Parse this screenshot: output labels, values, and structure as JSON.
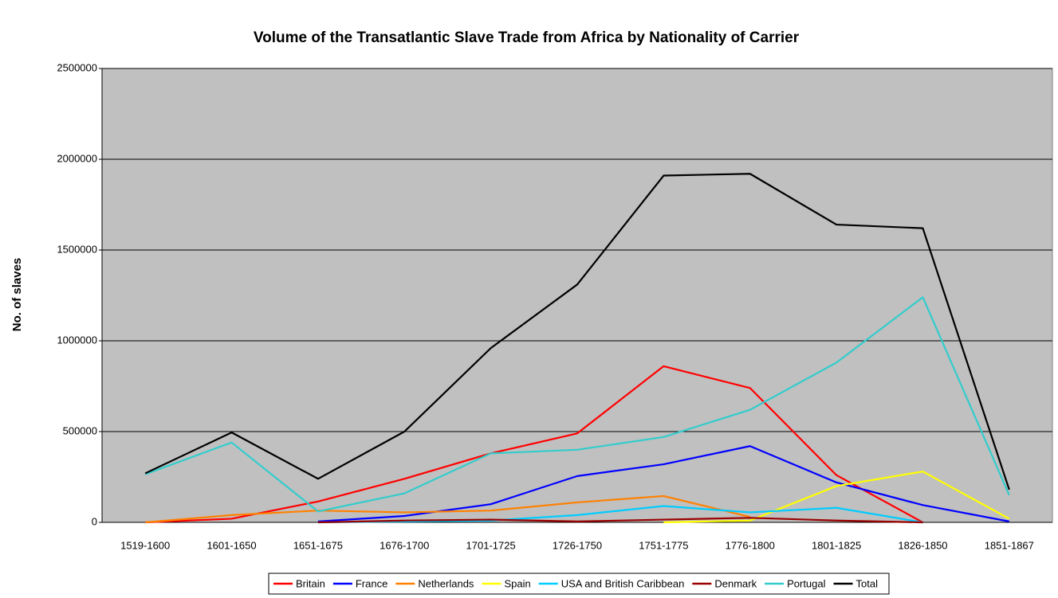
{
  "chart_data": {
    "type": "line",
    "title": "Volume of the Transatlantic Slave Trade from Africa by Nationality of Carrier",
    "y_label": "No. of slaves",
    "categories": [
      "1519-1600",
      "1601-1650",
      "1651-1675",
      "1676-1700",
      "1701-1725",
      "1726-1750",
      "1751-1775",
      "1776-1800",
      "1801-1825",
      "1826-1850",
      "1851-1867"
    ],
    "ylim": [
      0,
      2500000
    ],
    "yticks": [
      0,
      500000,
      1000000,
      1500000,
      2000000,
      2500000
    ],
    "grid": true,
    "legend": "bottom",
    "series": [
      {
        "name": "Britain",
        "color": "#ff0000",
        "values": [
          0,
          20000,
          115000,
          240000,
          380000,
          490000,
          860000,
          740000,
          260000,
          0,
          null
        ]
      },
      {
        "name": "France",
        "color": "#0000ff",
        "values": [
          null,
          null,
          5000,
          35000,
          100000,
          255000,
          320000,
          420000,
          220000,
          95000,
          5000
        ]
      },
      {
        "name": "Netherlands",
        "color": "#ff8000",
        "values": [
          0,
          40000,
          65000,
          55000,
          65000,
          110000,
          145000,
          30000,
          null,
          null,
          null
        ]
      },
      {
        "name": "Spain",
        "color": "#ffff00",
        "values": [
          null,
          null,
          null,
          null,
          null,
          null,
          0,
          10000,
          200000,
          280000,
          20000
        ]
      },
      {
        "name": "USA and British Caribbean",
        "color": "#00ccff",
        "values": [
          null,
          null,
          0,
          5000,
          10000,
          40000,
          90000,
          55000,
          80000,
          0,
          null
        ]
      },
      {
        "name": "Denmark",
        "color": "#990000",
        "values": [
          null,
          null,
          0,
          10000,
          15000,
          5000,
          15000,
          25000,
          10000,
          0,
          null
        ]
      },
      {
        "name": "Portugal",
        "color": "#33cccc",
        "values": [
          265000,
          440000,
          60000,
          160000,
          380000,
          400000,
          470000,
          620000,
          880000,
          1240000,
          150000
        ]
      },
      {
        "name": "Total",
        "color": "#000000",
        "values": [
          270000,
          495000,
          240000,
          500000,
          960000,
          1310000,
          1910000,
          1920000,
          1640000,
          1620000,
          180000
        ]
      }
    ]
  }
}
